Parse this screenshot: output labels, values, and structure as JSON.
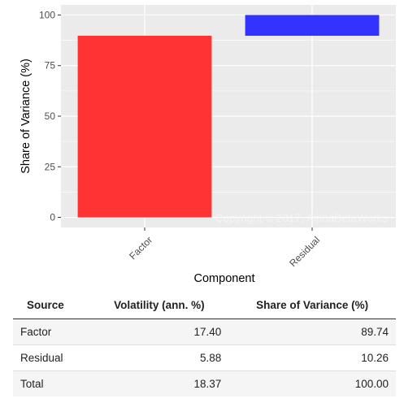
{
  "chart_data": {
    "type": "bar",
    "subtype": "waterfall",
    "categories": [
      "Factor",
      "Residual"
    ],
    "bars": [
      {
        "category": "Factor",
        "start": 0,
        "end": 89.74,
        "color": "#FF3333"
      },
      {
        "category": "Residual",
        "start": 89.74,
        "end": 100,
        "color": "#3333FF"
      }
    ],
    "xlabel": "Component",
    "ylabel": "Share of Variance (%)",
    "ylim": [
      -5,
      105
    ],
    "yticks": [
      0,
      25,
      50,
      75,
      100
    ],
    "grid": true,
    "background": "#EBEBEB",
    "watermark": "Copyright © 2017, AlphaBetaWorks"
  },
  "table": {
    "headers": [
      "Source",
      "Volatility (ann. %)",
      "Share of Variance (%)"
    ],
    "rows": [
      {
        "source": "Factor",
        "volatility": "17.40",
        "share": "89.74"
      },
      {
        "source": "Residual",
        "volatility": "5.88",
        "share": "10.26"
      },
      {
        "source": "Total",
        "volatility": "18.37",
        "share": "100.00"
      }
    ]
  }
}
